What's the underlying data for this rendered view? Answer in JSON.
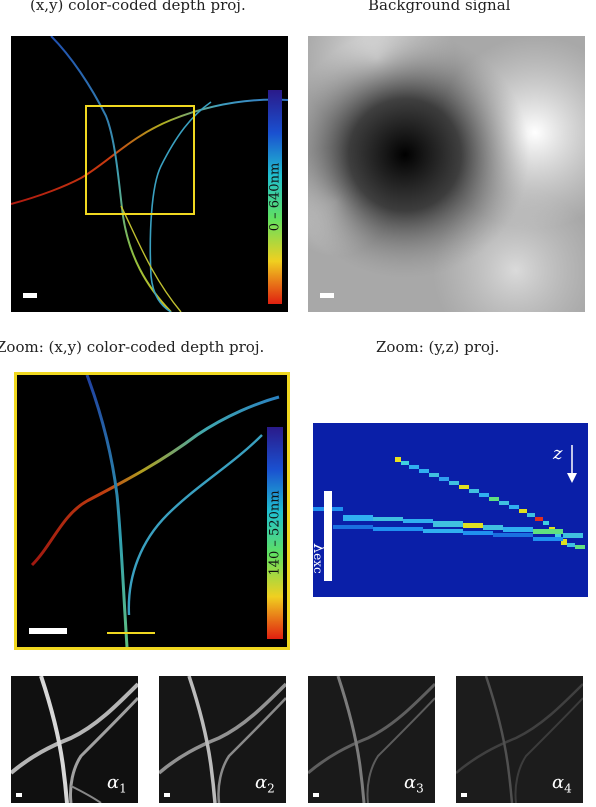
{
  "captions": {
    "top_left": "(x,y) color-coded depth proj.",
    "top_right": "Background signal",
    "mid_left": "Zoom: (x,y) color-coded depth proj.",
    "mid_right": "Zoom: (y,z) proj."
  },
  "colorbars": {
    "top": "0 – 640nm",
    "zoom": "140 – 520nm"
  },
  "yz_labels": {
    "z": "z",
    "lambda": "λ",
    "lambda_sub": "exc"
  },
  "alpha_labels": [
    {
      "sym": "α",
      "sub": "1"
    },
    {
      "sym": "α",
      "sub": "2"
    },
    {
      "sym": "α",
      "sub": "3"
    },
    {
      "sym": "α",
      "sub": "4"
    }
  ],
  "colors": {
    "highlight_box": "#f0d820",
    "yz_background": "#0a1fa8"
  }
}
